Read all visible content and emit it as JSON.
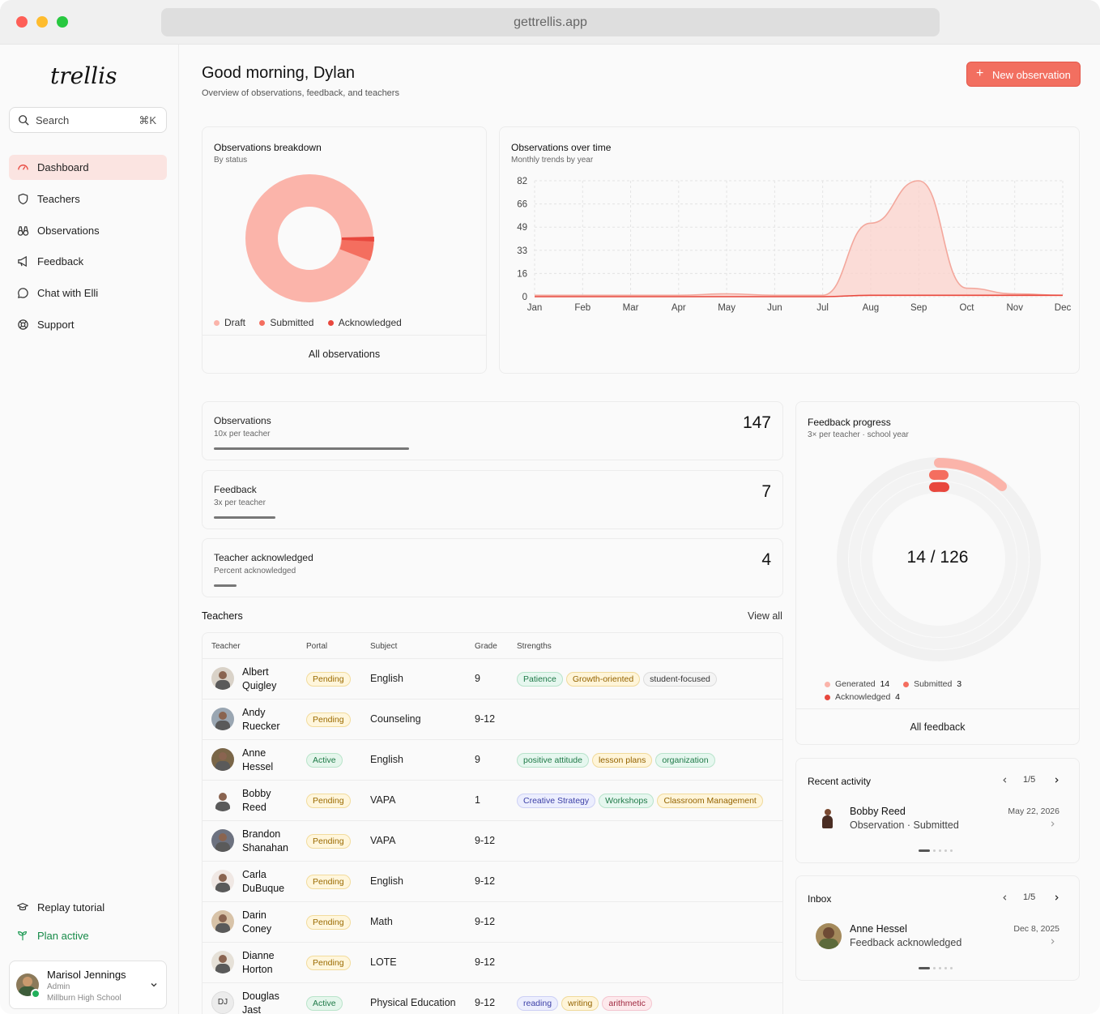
{
  "browser": {
    "url": "gettrellis.app"
  },
  "sidebar": {
    "logo": "trellis",
    "search_label": "Search",
    "search_shortcut": "⌘K",
    "items": [
      {
        "label": "Dashboard",
        "icon": "gauge-icon"
      },
      {
        "label": "Teachers",
        "icon": "shield-icon"
      },
      {
        "label": "Observations",
        "icon": "binoculars-icon"
      },
      {
        "label": "Feedback",
        "icon": "megaphone-icon"
      },
      {
        "label": "Chat with Elli",
        "icon": "chat-bubble-icon"
      },
      {
        "label": "Support",
        "icon": "lifebuoy-icon"
      }
    ],
    "replay_tutorial": "Replay tutorial",
    "plan_status": "Plan active",
    "user": {
      "name": "Marisol Jennings",
      "role": "Admin",
      "school": "Millburn High School"
    }
  },
  "header": {
    "greeting": "Good morning, Dylan",
    "subtitle": "Overview of observations, feedback, and teachers",
    "new_button": "New observation"
  },
  "breakdown": {
    "title": "Observations breakdown",
    "subtitle": "By status",
    "legend": [
      "Draft",
      "Submitted",
      "Acknowledged"
    ],
    "link": "All observations",
    "colors": {
      "draft": "#fbb4aa",
      "submitted": "#f46e5f",
      "acknowledged": "#e8473d"
    }
  },
  "chart_data": {
    "type": "area",
    "title": "Observations over time",
    "subtitle": "Monthly trends by year",
    "categories": [
      "Jan",
      "Feb",
      "Mar",
      "Apr",
      "May",
      "Jun",
      "Jul",
      "Aug",
      "Sep",
      "Oct",
      "Nov",
      "Dec"
    ],
    "yticks": [
      "82",
      "66",
      "49",
      "33",
      "16",
      "0"
    ],
    "ylim": [
      0,
      82
    ],
    "series": [
      {
        "values": [
          1,
          1,
          1,
          1,
          2,
          1,
          1,
          52,
          82,
          6,
          2,
          1
        ],
        "color": "#f3a79c"
      },
      {
        "values": [
          0,
          0,
          0,
          0,
          0,
          0,
          0,
          1,
          1,
          1,
          1,
          1
        ],
        "color": "#e8473d"
      }
    ]
  },
  "stats": [
    {
      "title": "Observations",
      "sub": "10x per teacher",
      "value": "147",
      "progress": 0.35
    },
    {
      "title": "Feedback",
      "sub": "3x per teacher",
      "value": "7",
      "progress": 0.11
    },
    {
      "title": "Teacher acknowledged",
      "sub": "Percent acknowledged",
      "value": "4",
      "progress": 0.04
    }
  ],
  "feedback_progress": {
    "title": "Feedback progress",
    "subtitle": "3× per teacher · school year",
    "center": "14 / 126",
    "legend": [
      {
        "label": "Generated",
        "value": "14"
      },
      {
        "label": "Submitted",
        "value": "3"
      },
      {
        "label": "Acknowledged",
        "value": "4"
      }
    ],
    "link": "All feedback"
  },
  "teachers": {
    "title": "Teachers",
    "view_all": "View all",
    "columns": [
      "Teacher",
      "Portal",
      "Subject",
      "Grade",
      "Strengths"
    ],
    "rows": [
      {
        "first": "Albert",
        "last": "Quigley",
        "portal": "Pending",
        "subject": "English",
        "grade": "9",
        "tags": [
          [
            "Patience",
            "green"
          ],
          [
            "Growth-oriented",
            "yellow"
          ],
          [
            "student-focused",
            "gray"
          ]
        ]
      },
      {
        "first": "Andy",
        "last": "Ruecker",
        "portal": "Pending",
        "subject": "Counseling",
        "grade": "9-12",
        "tags": []
      },
      {
        "first": "Anne",
        "last": "Hessel",
        "portal": "Active",
        "subject": "English",
        "grade": "9",
        "tags": [
          [
            "positive attitude",
            "green"
          ],
          [
            "lesson plans",
            "yellow"
          ],
          [
            "organization",
            "green"
          ]
        ]
      },
      {
        "first": "Bobby",
        "last": "Reed",
        "portal": "Pending",
        "subject": "VAPA",
        "grade": "1",
        "tags": [
          [
            "Creative Strategy",
            "blue"
          ],
          [
            "Workshops",
            "green"
          ],
          [
            "Classroom Management",
            "yellow"
          ]
        ]
      },
      {
        "first": "Brandon",
        "last": "Shanahan",
        "portal": "Pending",
        "subject": "VAPA",
        "grade": "9-12",
        "tags": []
      },
      {
        "first": "Carla",
        "last": "DuBuque",
        "portal": "Pending",
        "subject": "English",
        "grade": "9-12",
        "tags": []
      },
      {
        "first": "Darin",
        "last": "Coney",
        "portal": "Pending",
        "subject": "Math",
        "grade": "9-12",
        "tags": []
      },
      {
        "first": "Dianne",
        "last": "Horton",
        "portal": "Pending",
        "subject": "LOTE",
        "grade": "9-12",
        "tags": []
      },
      {
        "first": "Douglas",
        "last": "Jast",
        "initials": "DJ",
        "portal": "Active",
        "subject": "Physical Education",
        "grade": "9-12",
        "tags": [
          [
            "reading",
            "blue"
          ],
          [
            "writing",
            "yellow"
          ],
          [
            "arithmetic",
            "pink"
          ]
        ]
      }
    ]
  },
  "recent_activity": {
    "title": "Recent activity",
    "page": "1/5",
    "name": "Bobby Reed",
    "detail": "Observation · Submitted",
    "date": "May 22, 2026"
  },
  "inbox": {
    "title": "Inbox",
    "page": "1/5",
    "name": "Anne Hessel",
    "detail": "Feedback acknowledged",
    "date": "Dec 8, 2025"
  }
}
